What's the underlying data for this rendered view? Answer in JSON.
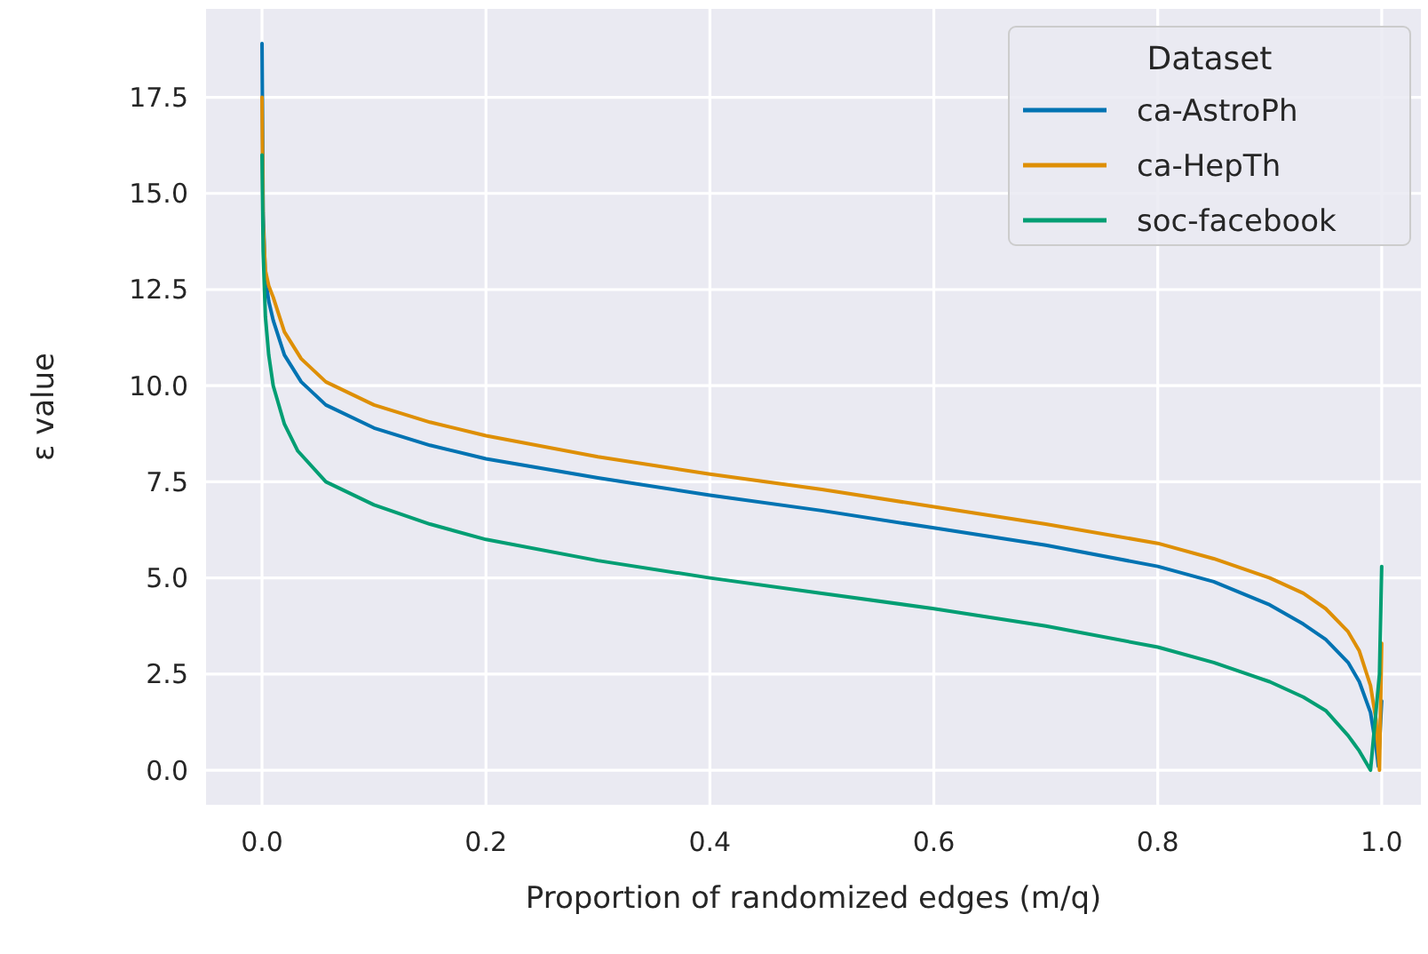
{
  "chart_data": {
    "type": "line",
    "xlabel": "Proportion of randomized edges (m/q)",
    "ylabel": "ε value",
    "legend_title": "Dataset",
    "legend": "top right",
    "grid": true,
    "marker": "none",
    "line_style": "solid",
    "xlim": [
      -0.05,
      1.035
    ],
    "ylim": [
      -0.9,
      19.8
    ],
    "xticks": [
      {
        "value": 0,
        "label": "0.0"
      },
      {
        "value": 0.2,
        "label": "0.2"
      },
      {
        "value": 0.4,
        "label": "0.4"
      },
      {
        "value": 0.6,
        "label": "0.6"
      },
      {
        "value": 0.8,
        "label": "0.8"
      },
      {
        "value": 1,
        "label": "1.0"
      }
    ],
    "yticks": [
      {
        "value": 0,
        "label": "0.0"
      },
      {
        "value": 2.5,
        "label": "2.5"
      },
      {
        "value": 5,
        "label": "5.0"
      },
      {
        "value": 7.5,
        "label": "7.5"
      },
      {
        "value": 10,
        "label": "10.0"
      },
      {
        "value": 12.5,
        "label": "12.5"
      },
      {
        "value": 15,
        "label": "15.0"
      },
      {
        "value": 17.5,
        "label": "17.5"
      }
    ],
    "series": [
      {
        "name": "ca-AstroPh",
        "color": "#0173b2",
        "x": [
          0,
          0.001,
          0.003,
          0.006,
          0.01,
          0.02,
          0.035,
          0.057,
          0.1,
          0.15,
          0.2,
          0.3,
          0.4,
          0.5,
          0.6,
          0.7,
          0.8,
          0.85,
          0.9,
          0.93,
          0.95,
          0.97,
          0.98,
          0.99,
          0.995,
          0.997,
          1.0
        ],
        "values": [
          18.9,
          14.5,
          12.8,
          12.2,
          11.7,
          10.8,
          10.1,
          9.5,
          8.9,
          8.45,
          8.1,
          7.6,
          7.15,
          6.75,
          6.3,
          5.85,
          5.3,
          4.9,
          4.3,
          3.8,
          3.4,
          2.8,
          2.3,
          1.5,
          0.6,
          0.1,
          1.8
        ]
      },
      {
        "name": "ca-HepTh",
        "color": "#de8f05",
        "x": [
          0,
          0.001,
          0.003,
          0.006,
          0.01,
          0.02,
          0.035,
          0.057,
          0.1,
          0.15,
          0.2,
          0.3,
          0.4,
          0.5,
          0.6,
          0.7,
          0.8,
          0.85,
          0.9,
          0.93,
          0.95,
          0.97,
          0.98,
          0.99,
          0.995,
          0.998,
          1.0
        ],
        "values": [
          17.5,
          14.2,
          13.0,
          12.6,
          12.3,
          11.4,
          10.7,
          10.1,
          9.5,
          9.05,
          8.7,
          8.15,
          7.7,
          7.3,
          6.85,
          6.4,
          5.9,
          5.5,
          5.0,
          4.6,
          4.2,
          3.6,
          3.1,
          2.2,
          1.3,
          0.0,
          3.3
        ]
      },
      {
        "name": "soc-facebook",
        "color": "#029e73",
        "x": [
          0,
          0.001,
          0.003,
          0.006,
          0.01,
          0.02,
          0.032,
          0.057,
          0.1,
          0.15,
          0.2,
          0.3,
          0.4,
          0.5,
          0.6,
          0.7,
          0.8,
          0.85,
          0.9,
          0.93,
          0.95,
          0.97,
          0.98,
          0.99,
          0.998,
          1.0
        ],
        "values": [
          16.0,
          13.5,
          11.8,
          10.8,
          10.0,
          9.0,
          8.3,
          7.5,
          6.9,
          6.4,
          6.0,
          5.45,
          5.0,
          4.6,
          4.2,
          3.75,
          3.2,
          2.8,
          2.3,
          1.9,
          1.55,
          0.9,
          0.5,
          0.0,
          2.5,
          5.3
        ]
      }
    ]
  }
}
